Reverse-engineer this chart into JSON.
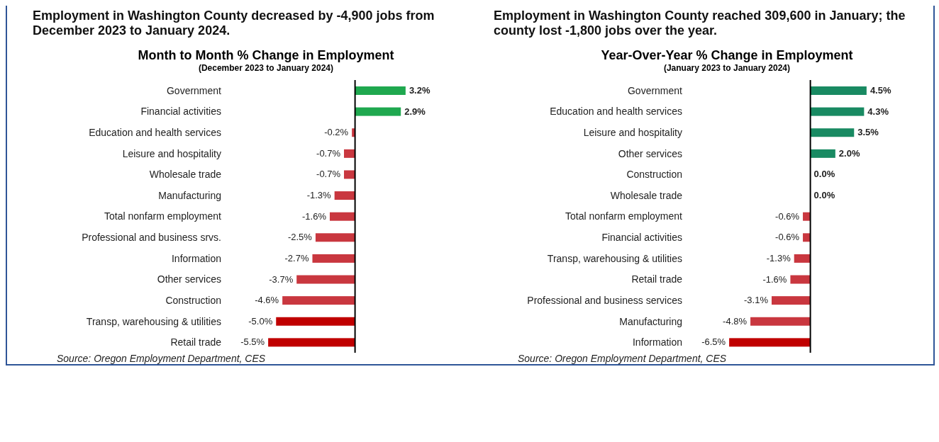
{
  "chart_data": [
    {
      "type": "bar",
      "orientation": "horizontal",
      "title": "Employment in Washington County decreased by -4,900 jobs from December 2023 to January 2024.",
      "subtitle": "Month to Month % Change in Employment",
      "annotations": [
        "(December 2023 to January 2024)",
        "Source: Oregon Employment Department, CES"
      ],
      "categories": [
        "Government",
        "Financial activities",
        "Education and health services",
        "Leisure and hospitality",
        "Wholesale trade",
        "Manufacturing",
        "Total nonfarm employment",
        "Professional and business srvs.",
        "Information",
        "Other services",
        "Construction",
        "Transp, warehousing & utilities",
        "Retail trade"
      ],
      "values": [
        3.2,
        2.9,
        -0.2,
        -0.7,
        -0.7,
        -1.3,
        -1.6,
        -2.5,
        -2.7,
        -3.7,
        -4.6,
        -5.0,
        -5.5
      ],
      "value_labels": [
        "3.2%",
        "2.9%",
        "-0.2%",
        "-0.7%",
        "-0.7%",
        "-1.3%",
        "-1.6%",
        "-2.5%",
        "-2.7%",
        "-3.7%",
        "-4.6%",
        "-5.0%",
        "-5.5%"
      ],
      "colors": [
        "#1fa84f",
        "#1fa84f",
        "#c9373f",
        "#c9373f",
        "#c9373f",
        "#c9373f",
        "#c9373f",
        "#c9373f",
        "#c9373f",
        "#c9373f",
        "#c9373f",
        "#c00000",
        "#c00000"
      ],
      "grid": false,
      "legend": false
    },
    {
      "type": "bar",
      "orientation": "horizontal",
      "title": "Employment in Washington County reached 309,600 in January; the county lost -1,800 jobs over the year.",
      "subtitle": "Year-Over-Year % Change in Employment",
      "annotations": [
        "(January 2023 to January 2024)",
        "Source: Oregon Employment Department, CES"
      ],
      "categories": [
        "Government",
        "Education and health services",
        "Leisure and hospitality",
        "Other services",
        "Construction",
        "Wholesale trade",
        "Total nonfarm employment",
        "Financial activities",
        "Transp, warehousing & utilities",
        "Retail trade",
        "Professional and business services",
        "Manufacturing",
        "Information"
      ],
      "values": [
        4.5,
        4.3,
        3.5,
        2.0,
        0.0,
        0.0,
        -0.6,
        -0.6,
        -1.3,
        -1.6,
        -3.1,
        -4.8,
        -6.5
      ],
      "value_labels": [
        "4.5%",
        "4.3%",
        "3.5%",
        "2.0%",
        "0.0%",
        "0.0%",
        "-0.6%",
        "-0.6%",
        "-1.3%",
        "-1.6%",
        "-3.1%",
        "-4.8%",
        "-6.5%"
      ],
      "colors": [
        "#198a62",
        "#198a62",
        "#198a62",
        "#198a62",
        "#198a62",
        "#198a62",
        "#c9373f",
        "#c9373f",
        "#c9373f",
        "#c9373f",
        "#c9373f",
        "#c9373f",
        "#c00000"
      ],
      "grid": false,
      "legend": false
    }
  ]
}
